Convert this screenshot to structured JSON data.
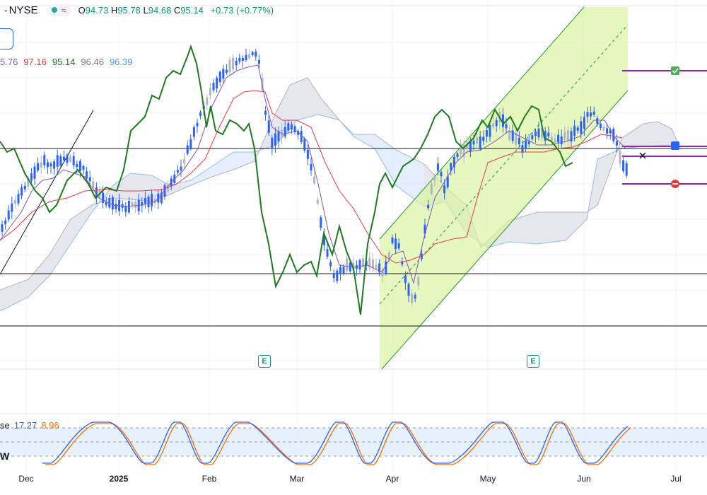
{
  "header": {
    "exchange": "NYSE",
    "separator": "-",
    "open_label": "O",
    "open": "94.73",
    "high_label": "H",
    "high": "95.78",
    "low_label": "L",
    "low": "94.68",
    "close_label": "C",
    "close": "95.14",
    "change": "+0.73 (+0.77%)",
    "wave_icon": "≈"
  },
  "indicator_values": [
    {
      "text": "5.76",
      "color": "#7e57c2"
    },
    {
      "text": "97.16",
      "color": "#f23645"
    },
    {
      "text": "95.14",
      "color": "#1e7b1e"
    },
    {
      "text": "96.46",
      "color": "#787b86"
    },
    {
      "text": "96.39",
      "color": "#4a9ee8"
    }
  ],
  "stoch_label": {
    "name": "se",
    "k": "17.27",
    "d": "8.96",
    "k_color": "#2962ff",
    "d_color": "#ff6d00"
  },
  "stoch_w_label": "W",
  "x_axis": [
    {
      "label": "Dec",
      "bold": false
    },
    {
      "label": "2025",
      "bold": true
    },
    {
      "label": "Feb",
      "bold": false
    },
    {
      "label": "Mar",
      "bold": false
    },
    {
      "label": "Apr",
      "bold": false
    },
    {
      "label": "May",
      "bold": false
    },
    {
      "label": "Jun",
      "bold": false
    },
    {
      "label": "Jul",
      "bold": false
    }
  ],
  "earnings_badges": [
    "E",
    "E"
  ],
  "chart_data": {
    "type": "candlestick",
    "symbol_exchange": "NYSE",
    "x_categories": [
      "Dec",
      "2025",
      "Feb",
      "Mar",
      "Apr",
      "May",
      "Jun",
      "Jul"
    ],
    "last_bar": {
      "open": 94.73,
      "high": 95.78,
      "low": 94.68,
      "close": 95.14,
      "change": 0.73,
      "change_pct": 0.77
    },
    "indicators": {
      "ichimoku_values": [
        5.76,
        97.16,
        95.14,
        96.46,
        96.39
      ],
      "stochastic": {
        "k": 17.27,
        "d": 8.96
      }
    },
    "colors": {
      "candle": "#2962ff",
      "candle_alt": "#b2b5be",
      "lagging_span": "#1e7b1e",
      "base_line": "#f23645",
      "conversion_line": "#7e57c2",
      "cloud_bull": "#dbe8fb",
      "cloud_bear": "#e4e6ea",
      "channel_fill": "#d8f59a",
      "target_line": "#8e24aa",
      "stoch_k": "#2962ff",
      "stoch_d": "#ff6d00",
      "stoch_band": "#e3effc"
    },
    "grid": true
  }
}
